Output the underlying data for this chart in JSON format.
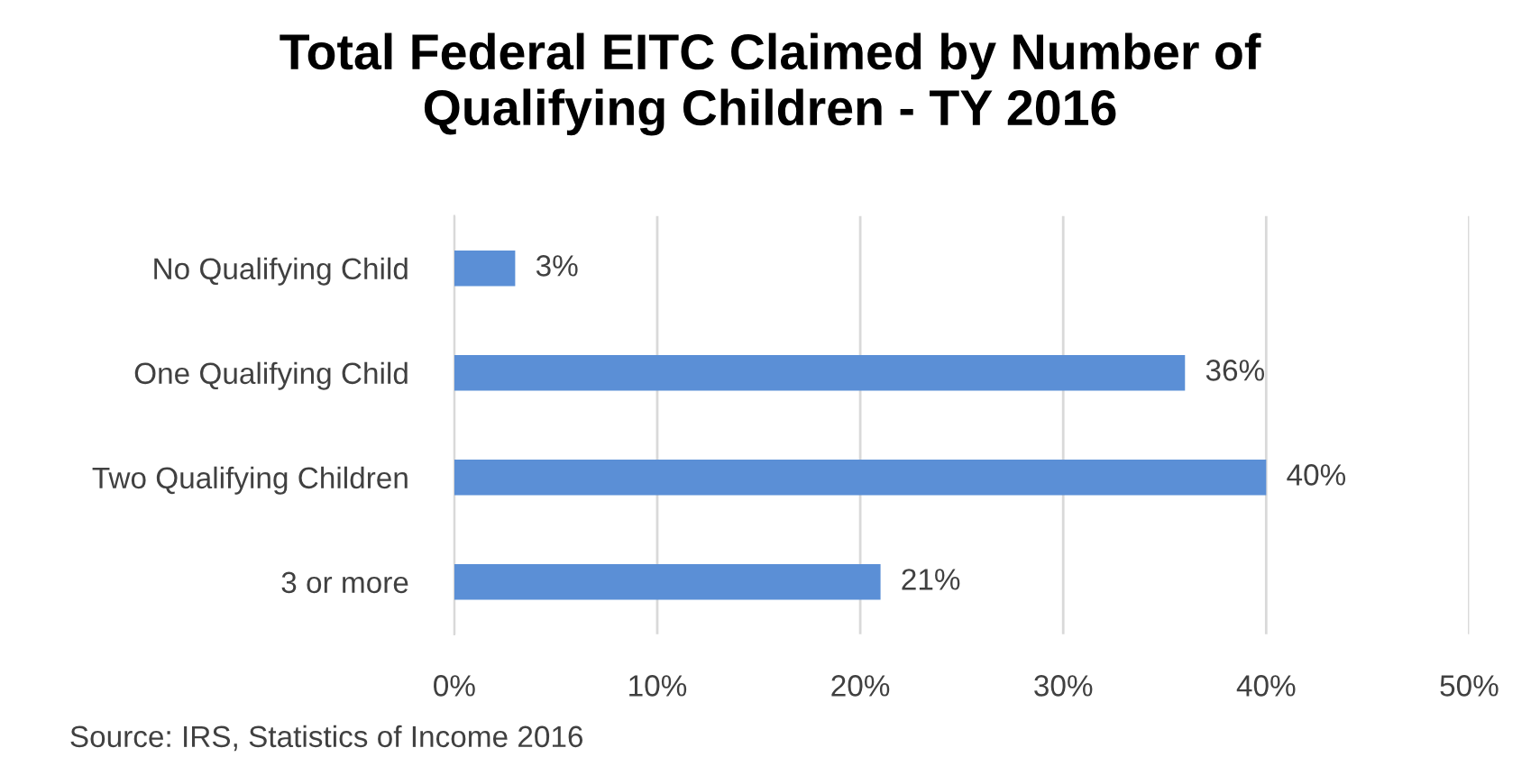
{
  "chart_data": {
    "type": "bar",
    "orientation": "horizontal",
    "title": "Total Federal EITC Claimed by Number of\nQualifying Children - TY 2016",
    "categories": [
      "No Qualifying Child",
      "One Qualifying Child",
      "Two Qualifying Children",
      "3 or more"
    ],
    "values": [
      3,
      36,
      40,
      21
    ],
    "color": "#5b8fd6",
    "value_labels": [
      "3%",
      "36%",
      "40%",
      "21%"
    ],
    "xlim": [
      0,
      50
    ],
    "xticks": [
      {
        "value": 0,
        "label": "0%"
      },
      {
        "value": 10,
        "label": "10%"
      },
      {
        "value": 20,
        "label": "20%"
      },
      {
        "value": 30,
        "label": "30%"
      },
      {
        "value": 40,
        "label": "40%"
      },
      {
        "value": 50,
        "label": "50%"
      }
    ],
    "grid": "x",
    "annotations": [
      "Source: IRS, Statistics of Income 2016"
    ]
  }
}
